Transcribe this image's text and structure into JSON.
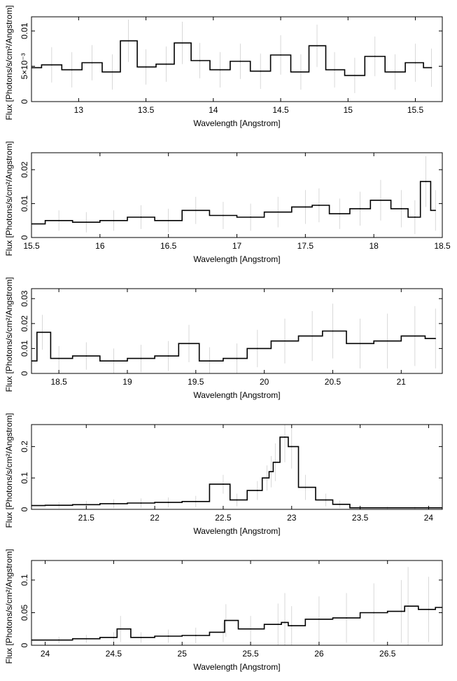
{
  "chart_data": [
    {
      "type": "line",
      "xlabel": "Wavelength [Angstrom]",
      "ylabel": "Flux [Photons/s/cm²/Angstrom]",
      "xlim": [
        12.65,
        15.7
      ],
      "ylim": [
        0,
        0.012
      ],
      "xticks": [
        "13",
        "13.5",
        "14",
        "14.5",
        "15",
        "15.5"
      ],
      "xtick_values": [
        13,
        13.5,
        14,
        14.5,
        15,
        15.5
      ],
      "yticks": [
        "0",
        "5×10⁻³",
        "0.01"
      ],
      "ytick_values": [
        0,
        0.005,
        0.01
      ],
      "series": [
        {
          "x": [
            12.65,
            12.8,
            12.95,
            13.1,
            13.25,
            13.37,
            13.5,
            13.65,
            13.77,
            13.9,
            14.05,
            14.2,
            14.35,
            14.5,
            14.65,
            14.77,
            14.9,
            15.05,
            15.2,
            15.35,
            15.5,
            15.62
          ],
          "y": [
            0.0048,
            0.0052,
            0.0045,
            0.0055,
            0.0042,
            0.0086,
            0.0049,
            0.0053,
            0.0083,
            0.0058,
            0.0045,
            0.0057,
            0.0043,
            0.0066,
            0.0042,
            0.0079,
            0.0045,
            0.0037,
            0.0064,
            0.0042,
            0.0055,
            0.0048
          ],
          "err": [
            0.0025,
            0.0025,
            0.0025,
            0.0025,
            0.0025,
            0.003,
            0.0025,
            0.0025,
            0.003,
            0.0025,
            0.0025,
            0.0025,
            0.0025,
            0.0028,
            0.0025,
            0.003,
            0.0025,
            0.0025,
            0.0028,
            0.0025,
            0.0027,
            0.0027
          ]
        }
      ]
    },
    {
      "type": "line",
      "xlabel": "Wavelength [Angstrom]",
      "ylabel": "Flux [Photons/s/cm²/Angstrom]",
      "xlim": [
        15.5,
        18.5
      ],
      "ylim": [
        0,
        0.025
      ],
      "xticks": [
        "15.5",
        "16",
        "16.5",
        "17",
        "17.5",
        "18",
        "18.5"
      ],
      "xtick_values": [
        15.5,
        16,
        16.5,
        17,
        17.5,
        18,
        18.5
      ],
      "yticks": [
        "0",
        "0.01",
        "0.02"
      ],
      "ytick_values": [
        0,
        0.01,
        0.02
      ],
      "series": [
        {
          "x": [
            15.5,
            15.7,
            15.9,
            16.1,
            16.3,
            16.5,
            16.7,
            16.9,
            17.1,
            17.3,
            17.5,
            17.6,
            17.75,
            17.9,
            18.05,
            18.2,
            18.3,
            18.38,
            18.45
          ],
          "y": [
            0.004,
            0.005,
            0.0045,
            0.005,
            0.006,
            0.005,
            0.008,
            0.0065,
            0.006,
            0.0075,
            0.009,
            0.0095,
            0.007,
            0.0085,
            0.011,
            0.0085,
            0.006,
            0.0165,
            0.008
          ],
          "err": [
            0.003,
            0.003,
            0.003,
            0.003,
            0.0035,
            0.0035,
            0.004,
            0.004,
            0.004,
            0.0045,
            0.005,
            0.005,
            0.0045,
            0.005,
            0.006,
            0.0055,
            0.005,
            0.0075,
            0.006
          ]
        }
      ]
    },
    {
      "type": "line",
      "xlabel": "Wavelength [Angstrom]",
      "ylabel": "Flux [Photons/s/cm²/Angstrom]",
      "xlim": [
        18.3,
        21.3
      ],
      "ylim": [
        0,
        0.034
      ],
      "xticks": [
        "18.5",
        "19",
        "19.5",
        "20",
        "20.5",
        "21"
      ],
      "xtick_values": [
        18.5,
        19,
        19.5,
        20,
        20.5,
        21
      ],
      "yticks": [
        "0",
        "0.01",
        "0.02",
        "0.03"
      ],
      "ytick_values": [
        0,
        0.01,
        0.02,
        0.03
      ],
      "series": [
        {
          "x": [
            18.3,
            18.38,
            18.5,
            18.7,
            18.9,
            19.1,
            19.3,
            19.45,
            19.6,
            19.8,
            19.95,
            20.15,
            20.35,
            20.5,
            20.7,
            20.9,
            21.1,
            21.25
          ],
          "y": [
            0.005,
            0.0165,
            0.006,
            0.007,
            0.005,
            0.006,
            0.007,
            0.012,
            0.005,
            0.006,
            0.01,
            0.013,
            0.015,
            0.017,
            0.012,
            0.013,
            0.015,
            0.014
          ],
          "err": [
            0.005,
            0.007,
            0.005,
            0.0055,
            0.005,
            0.0055,
            0.006,
            0.0075,
            0.0055,
            0.006,
            0.0075,
            0.009,
            0.01,
            0.011,
            0.01,
            0.011,
            0.012,
            0.012
          ]
        }
      ]
    },
    {
      "type": "line",
      "xlabel": "Wavelength [Angstrom]",
      "ylabel": "Flux [Photons/s/cm²/Angstrom]",
      "xlim": [
        21.1,
        24.1
      ],
      "ylim": [
        0,
        0.27
      ],
      "xticks": [
        "21.5",
        "22",
        "22.5",
        "23",
        "23.5",
        "24"
      ],
      "xtick_values": [
        21.5,
        22,
        22.5,
        23,
        23.5,
        24
      ],
      "yticks": [
        "0",
        "0.1",
        "0.2"
      ],
      "ytick_values": [
        0,
        0.1,
        0.2
      ],
      "series": [
        {
          "x": [
            21.1,
            21.3,
            21.5,
            21.7,
            21.9,
            22.1,
            22.3,
            22.5,
            22.6,
            22.75,
            22.82,
            22.85,
            22.88,
            22.95,
            23.0,
            23.1,
            23.25,
            23.35,
            23.5,
            23.7,
            23.9,
            24.1
          ],
          "y": [
            0.012,
            0.013,
            0.015,
            0.018,
            0.02,
            0.022,
            0.025,
            0.08,
            0.03,
            0.06,
            0.1,
            0.12,
            0.15,
            0.23,
            0.2,
            0.07,
            0.03,
            0.016,
            0.005,
            0.005,
            0.005,
            0.005
          ],
          "err": [
            0.01,
            0.01,
            0.012,
            0.014,
            0.015,
            0.016,
            0.018,
            0.03,
            0.02,
            0.03,
            0.04,
            0.05,
            0.06,
            0.08,
            0.07,
            0.04,
            0.02,
            0.012,
            0.005,
            0.005,
            0.005,
            0.005
          ]
        }
      ]
    },
    {
      "type": "line",
      "xlabel": "Wavelength [Angstrom]",
      "ylabel": "Flux [Photons/s/cm²/Angstrom]",
      "xlim": [
        23.9,
        26.9
      ],
      "ylim": [
        0,
        0.13
      ],
      "xticks": [
        "24",
        "24.5",
        "25",
        "25.5",
        "26",
        "26.5"
      ],
      "xtick_values": [
        24,
        24.5,
        25,
        25.5,
        26,
        26.5
      ],
      "yticks": [
        "0",
        "0.05",
        "0.1"
      ],
      "ytick_values": [
        0,
        0.05,
        0.1
      ],
      "series": [
        {
          "x": [
            23.9,
            24.1,
            24.3,
            24.5,
            24.55,
            24.7,
            24.9,
            25.1,
            25.3,
            25.32,
            25.5,
            25.7,
            25.75,
            25.8,
            26.0,
            26.2,
            26.4,
            26.6,
            26.65,
            26.8,
            26.9
          ],
          "y": [
            0.008,
            0.008,
            0.01,
            0.012,
            0.025,
            0.012,
            0.014,
            0.015,
            0.02,
            0.038,
            0.025,
            0.032,
            0.035,
            0.03,
            0.04,
            0.042,
            0.05,
            0.052,
            0.06,
            0.055,
            0.058
          ],
          "err": [
            0.005,
            0.005,
            0.006,
            0.008,
            0.02,
            0.008,
            0.01,
            0.012,
            0.015,
            0.025,
            0.02,
            0.032,
            0.045,
            0.03,
            0.035,
            0.038,
            0.045,
            0.048,
            0.06,
            0.05,
            0.055
          ]
        }
      ]
    }
  ]
}
